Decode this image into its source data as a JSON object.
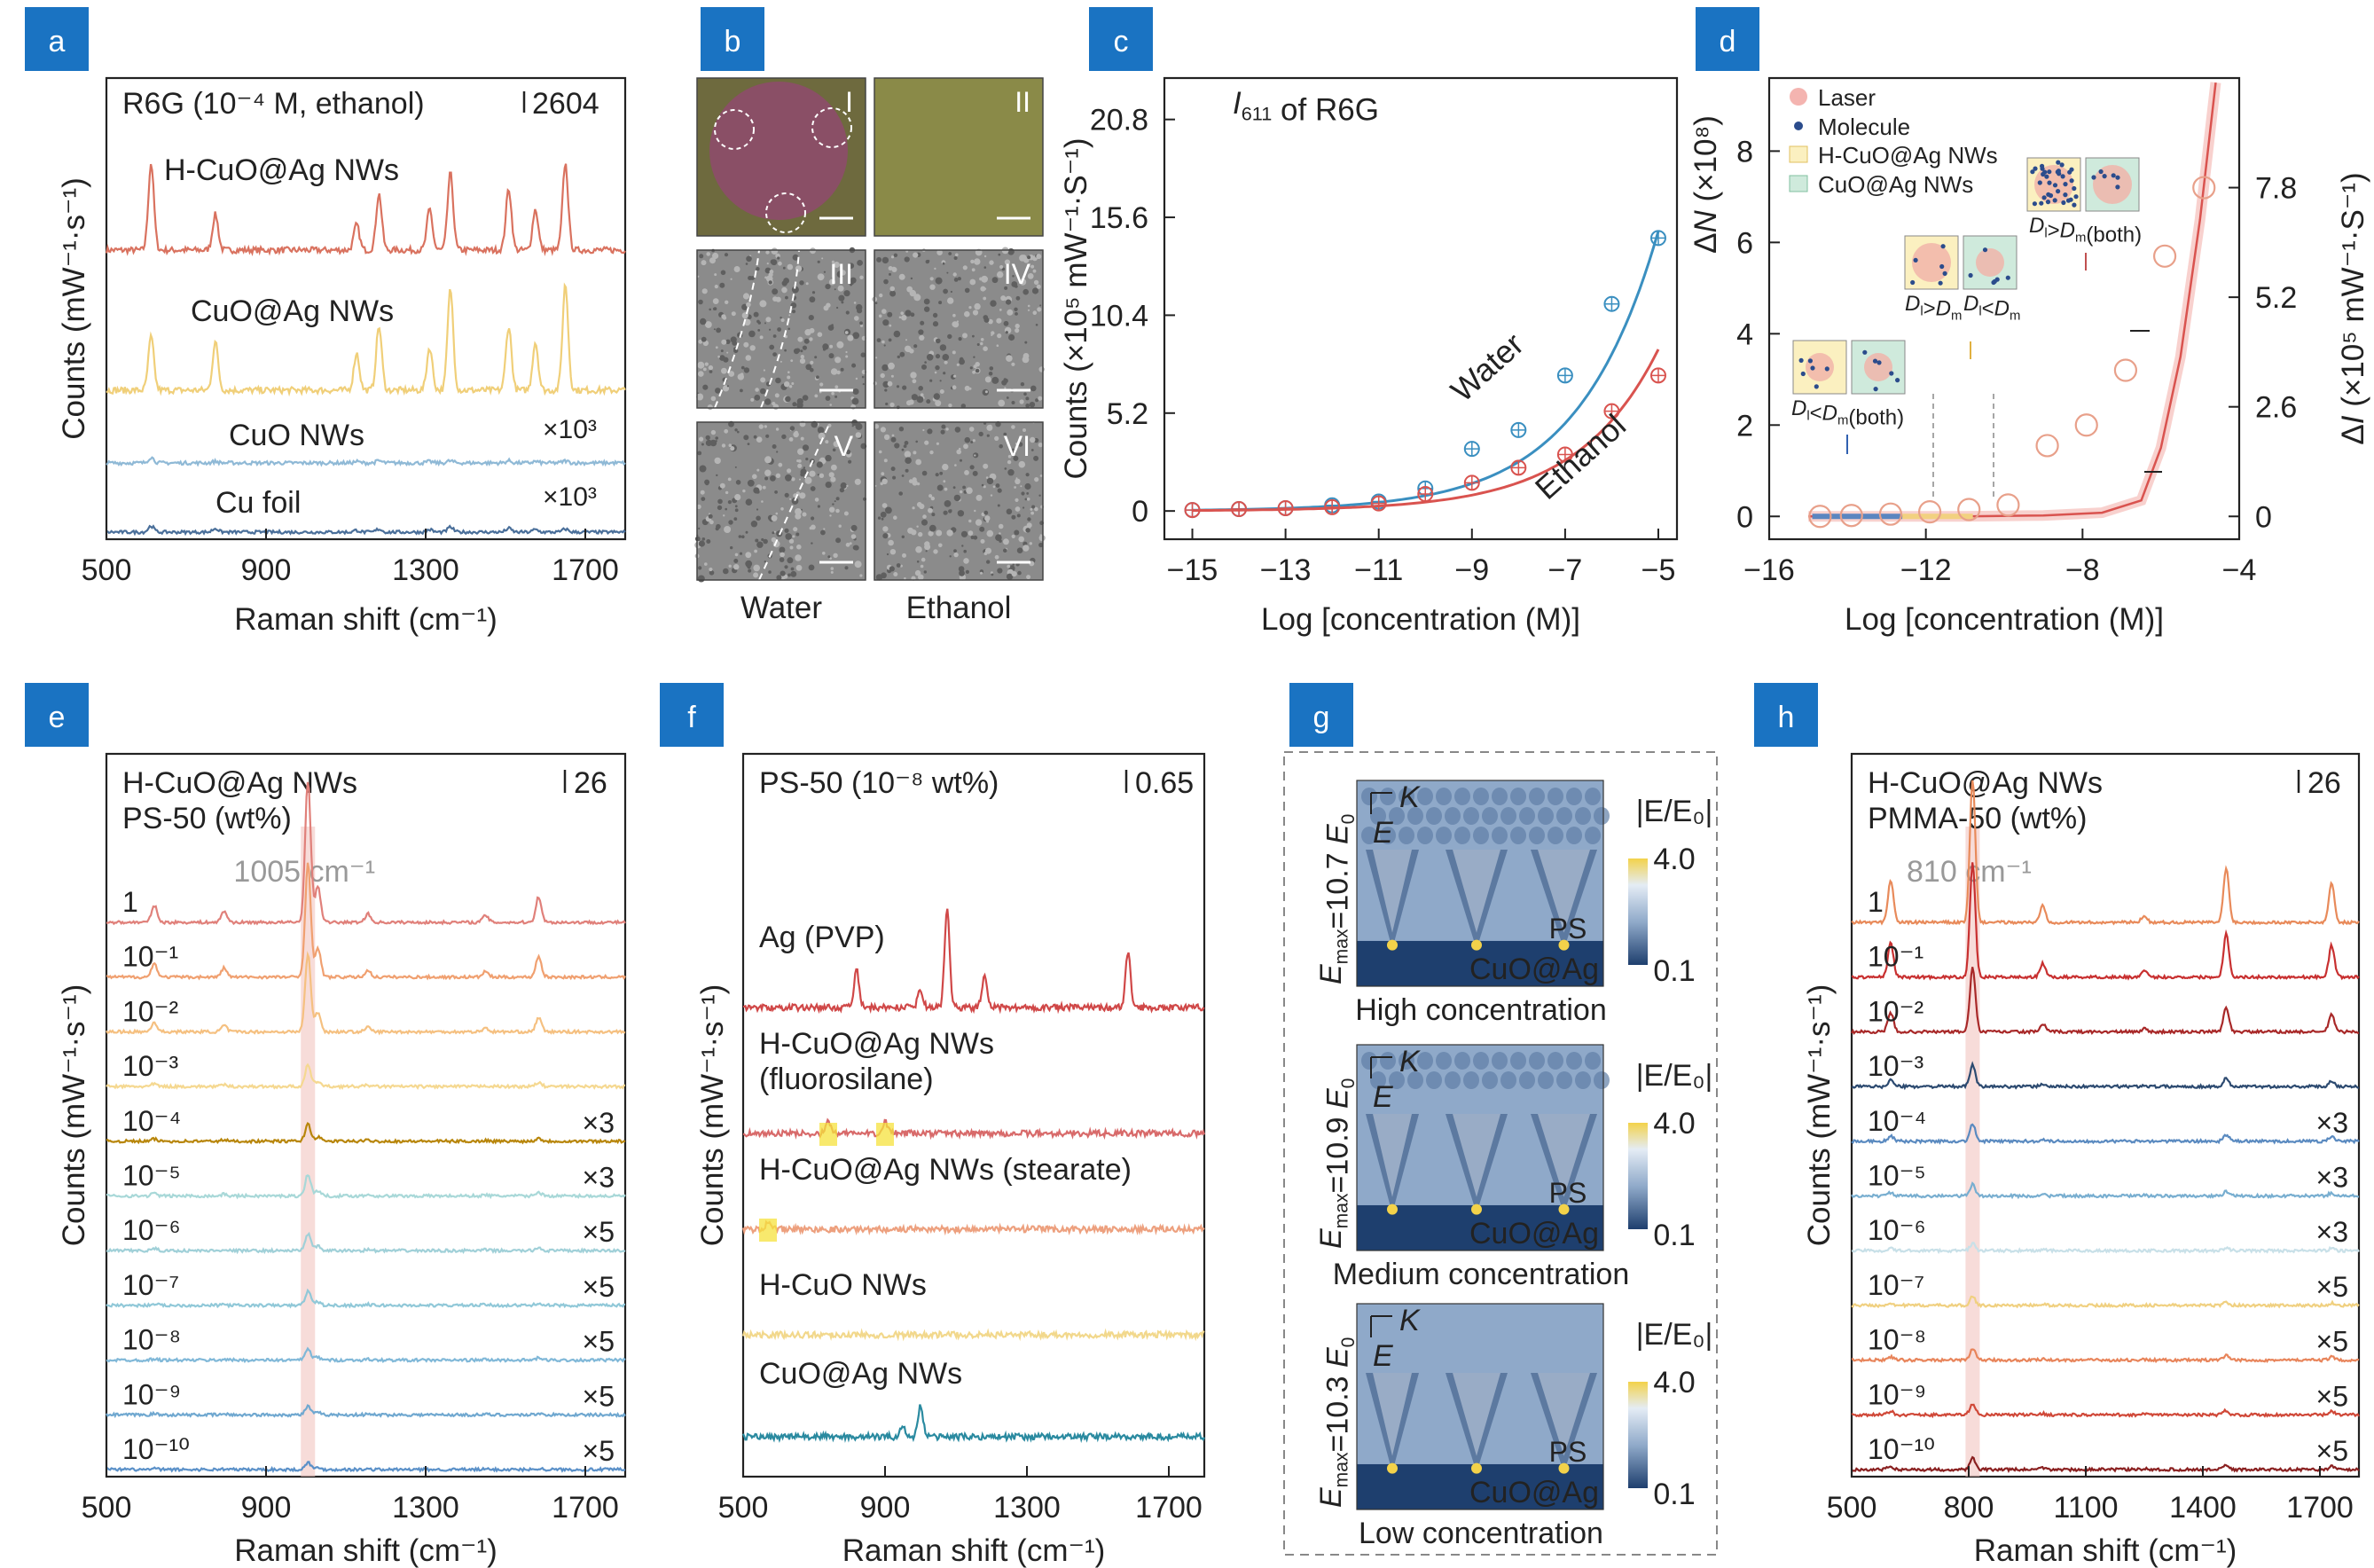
{
  "panel_letters": [
    "a",
    "b",
    "c",
    "d",
    "e",
    "f",
    "g",
    "h"
  ],
  "panel_a": {
    "chart_data": {
      "type": "line",
      "title": "R6G (10⁻⁴ M, ethanol)",
      "scale_bar_label": "2604",
      "xlabel": "Raman shift (cm⁻¹)",
      "ylabel": "Counts (mW⁻¹·s⁻¹)",
      "xlim": [
        500,
        1800
      ],
      "xticks": [
        "500",
        "900",
        "1300",
        "1700"
      ],
      "peaks_cm": [
        612,
        773,
        1127,
        1183,
        1310,
        1362,
        1508,
        1575,
        1650
      ],
      "series": [
        {
          "label": "H-CuO@Ag NWs",
          "color": "#d9725f",
          "multiplier": "",
          "peak_heights": [
            0.85,
            0.35,
            0.25,
            0.55,
            0.4,
            0.75,
            0.6,
            0.4,
            0.85
          ]
        },
        {
          "label": "CuO@Ag NWs",
          "color": "#f0cf79",
          "multiplier": "",
          "peak_heights": [
            0.5,
            0.45,
            0.35,
            0.6,
            0.4,
            0.95,
            0.6,
            0.45,
            1.0
          ]
        },
        {
          "label": "CuO NWs",
          "color": "#8fb9d6",
          "multiplier": "×10³",
          "peak_heights": [
            0.08,
            0.02,
            0.02,
            0.03,
            0.02,
            0.03,
            0.03,
            0.02,
            0.03
          ]
        },
        {
          "label": "Cu foil",
          "color": "#4a6f9a",
          "multiplier": "×10³",
          "peak_heights": [
            0.1,
            0.06,
            0.03,
            0.05,
            0.04,
            0.08,
            0.06,
            0.04,
            0.05
          ]
        }
      ]
    }
  },
  "panel_b": {
    "tiles": [
      "I",
      "II",
      "III",
      "IV",
      "V",
      "VI"
    ],
    "xlabels": [
      "Water",
      "Ethanol"
    ]
  },
  "panel_c": {
    "chart_data": {
      "type": "scatter",
      "title_italic": "I",
      "title_sub": "611",
      "title_rest": " of R6G",
      "xlabel": "Log [concentration (M)]",
      "ylabel": "Counts (×10⁵ mW⁻¹·S⁻¹)",
      "xlim": [
        -15.6,
        -4.6
      ],
      "ylim": [
        -1.5,
        23
      ],
      "xticks": [
        "−15",
        "−13",
        "−11",
        "−9",
        "−7",
        "−5"
      ],
      "yticks": [
        "0",
        "5.2",
        "10.4",
        "15.6",
        "20.8"
      ],
      "series": [
        {
          "name": "Water",
          "color": "#3a8fc0",
          "x": [
            -15,
            -14,
            -13,
            -12,
            -11,
            -10,
            -9,
            -8,
            -7,
            -6,
            -5
          ],
          "y": [
            0.05,
            0.1,
            0.15,
            0.3,
            0.5,
            1.2,
            3.3,
            4.3,
            7.2,
            11.0,
            14.5
          ]
        },
        {
          "name": "Ethanol",
          "color": "#d9534f",
          "x": [
            -15,
            -14,
            -13,
            -12,
            -11,
            -10,
            -9,
            -8,
            -7,
            -6,
            -5
          ],
          "y": [
            0.05,
            0.1,
            0.15,
            0.2,
            0.4,
            0.9,
            1.5,
            2.3,
            3.0,
            5.3,
            7.2
          ]
        }
      ]
    }
  },
  "panel_d": {
    "chart_data": {
      "type": "scatter",
      "xlabel": "Log [concentration (M)]",
      "ylabel_left": "ΔN (×10⁸)",
      "ylabel_right": "ΔI (×10⁵ mW⁻¹·S⁻¹)",
      "xlim": [
        -16,
        -4
      ],
      "ylim_left": [
        -0.5,
        9.6
      ],
      "xticks": [
        "−16",
        "−12",
        "−8",
        "−4"
      ],
      "yticks_left": [
        "0",
        "2",
        "4",
        "6",
        "8"
      ],
      "yticks_right": [
        "0",
        "2.6",
        "5.2",
        "7.8"
      ],
      "legend": [
        "Laser",
        "Molecule",
        "H-CuO@Ag NWs",
        "CuO@Ag NWs"
      ],
      "circles_x": [
        -14.7,
        -13.9,
        -12.9,
        -11.9,
        -10.9,
        -9.9,
        -8.9,
        -7.9,
        -6.9,
        -5.9,
        -4.9
      ],
      "circles_y": [
        0.0,
        0.02,
        0.05,
        0.1,
        0.15,
        0.25,
        1.55,
        2.0,
        3.2,
        5.7,
        7.2
      ],
      "curve_x": [
        -15,
        -13,
        -11,
        -9,
        -7.5,
        -6.5,
        -6,
        -5.5,
        -5,
        -4.6
      ],
      "curve_y": [
        0,
        0,
        0,
        0.02,
        0.08,
        0.35,
        1.5,
        3.5,
        6.5,
        9.5
      ],
      "inset_labels": [
        "Dₗ>Dₘ(both)",
        "Dₗ>Dₘ",
        "Dₗ<Dₘ",
        "Dₗ<Dₘ(both)"
      ]
    }
  },
  "panel_e": {
    "chart_data": {
      "type": "line",
      "title_line1": "H-CuO@Ag NWs",
      "title_line2": "PS-50 (wt%)",
      "scale_bar_label": "26",
      "peak_label": "1005 cm⁻¹",
      "xlabel": "Raman shift (cm⁻¹)",
      "ylabel": "Counts (mW⁻¹·s⁻¹)",
      "xlim": [
        500,
        1800
      ],
      "xticks": [
        "500",
        "900",
        "1300",
        "1700"
      ],
      "series": [
        {
          "label": "1",
          "mult": "",
          "color": "#e0807a",
          "amp": 1.0
        },
        {
          "label": "10⁻¹",
          "mult": "",
          "color": "#f0a070",
          "amp": 0.8
        },
        {
          "label": "10⁻²",
          "mult": "",
          "color": "#f5c080",
          "amp": 0.55
        },
        {
          "label": "10⁻³",
          "mult": "",
          "color": "#f5d890",
          "amp": 0.15
        },
        {
          "label": "10⁻⁴",
          "mult": "×3",
          "color": "#b8860b",
          "amp": 0.12
        },
        {
          "label": "10⁻⁵",
          "mult": "×3",
          "color": "#a8d8d8",
          "amp": 0.15
        },
        {
          "label": "10⁻⁶",
          "mult": "×5",
          "color": "#a0d0d8",
          "amp": 0.12
        },
        {
          "label": "10⁻⁷",
          "mult": "×5",
          "color": "#90c8d8",
          "amp": 0.1
        },
        {
          "label": "10⁻⁸",
          "mult": "×5",
          "color": "#80b8d8",
          "amp": 0.08
        },
        {
          "label": "10⁻⁹",
          "mult": "×5",
          "color": "#70a8d0",
          "amp": 0.06
        },
        {
          "label": "10⁻¹⁰",
          "mult": "×5",
          "color": "#5a90c8",
          "amp": 0.05
        }
      ]
    }
  },
  "panel_f": {
    "chart_data": {
      "type": "line",
      "title": "PS-50 (10⁻⁸ wt%)",
      "scale_bar_label": "0.65",
      "xlabel": "Raman shift (cm⁻¹)",
      "ylabel": "Counts (mW⁻¹·s⁻¹)",
      "xlim": [
        500,
        1800
      ],
      "xticks": [
        "500",
        "900",
        "1300",
        "1700"
      ],
      "series": [
        {
          "label": "Ag (PVP)",
          "label2": "",
          "color": "#d04848"
        },
        {
          "label": "H-CuO@Ag NWs",
          "label2": "(fluorosilane)",
          "color": "#d86a6a"
        },
        {
          "label": "H-CuO@Ag NWs (stearate)",
          "label2": "",
          "color": "#eda07e"
        },
        {
          "label": "H-CuO NWs",
          "label2": "",
          "color": "#f2d88c"
        },
        {
          "label": "CuO@Ag NWs",
          "label2": "",
          "color": "#2a8aa0"
        }
      ]
    }
  },
  "panel_g": {
    "maps": [
      {
        "emax": "10.7",
        "caption": "High concentration"
      },
      {
        "emax": "10.9",
        "caption": "Medium concentration"
      },
      {
        "emax": "10.3",
        "caption": "Low concentration"
      }
    ],
    "emax_prefix": "E",
    "emax_sub": "max",
    "emax_eq": "=",
    "e0_label": "E",
    "e0_sub": "0",
    "k_label": "K",
    "e_label": "E",
    "cbar_title": "|E/E₀|",
    "cbar_max": "4.0",
    "cbar_min": "0.1",
    "ps_label": "PS",
    "substrate_label": "CuO@Ag",
    "colors": {
      "dark": "#1e3f6e",
      "mid": "#8fa9c9",
      "light": "#e4ecf5",
      "hot": "#f3d24a"
    }
  },
  "panel_h": {
    "chart_data": {
      "type": "line",
      "title_line1": "H-CuO@Ag NWs",
      "title_line2": "PMMA-50 (wt%)",
      "scale_bar_label": "26",
      "peak_label": "810 cm⁻¹",
      "xlabel": "Raman shift (cm⁻¹)",
      "ylabel": "Counts (mW⁻¹·s⁻¹)",
      "xlim": [
        500,
        1800
      ],
      "xticks": [
        "500",
        "800",
        "1100",
        "1400",
        "1700"
      ],
      "series": [
        {
          "label": "1",
          "mult": "",
          "color": "#e88a5a",
          "amp": 1.0
        },
        {
          "label": "10⁻¹",
          "mult": "",
          "color": "#c83030",
          "amp": 0.8
        },
        {
          "label": "10⁻²",
          "mult": "",
          "color": "#a82828",
          "amp": 0.45
        },
        {
          "label": "10⁻³",
          "mult": "",
          "color": "#2c4a70",
          "amp": 0.15
        },
        {
          "label": "10⁻⁴",
          "mult": "×3",
          "color": "#5a8ac0",
          "amp": 0.12
        },
        {
          "label": "10⁻⁵",
          "mult": "×3",
          "color": "#78aed0",
          "amp": 0.08
        },
        {
          "label": "10⁻⁶",
          "mult": "×3",
          "color": "#c8e0e8",
          "amp": 0.05
        },
        {
          "label": "10⁻⁷",
          "mult": "×5",
          "color": "#f0d080",
          "amp": 0.06
        },
        {
          "label": "10⁻⁸",
          "mult": "×5",
          "color": "#e8845a",
          "amp": 0.08
        },
        {
          "label": "10⁻⁹",
          "mult": "×5",
          "color": "#d04838",
          "amp": 0.08
        },
        {
          "label": "10⁻¹⁰",
          "mult": "×5",
          "color": "#8a2020",
          "amp": 0.08
        }
      ]
    }
  }
}
